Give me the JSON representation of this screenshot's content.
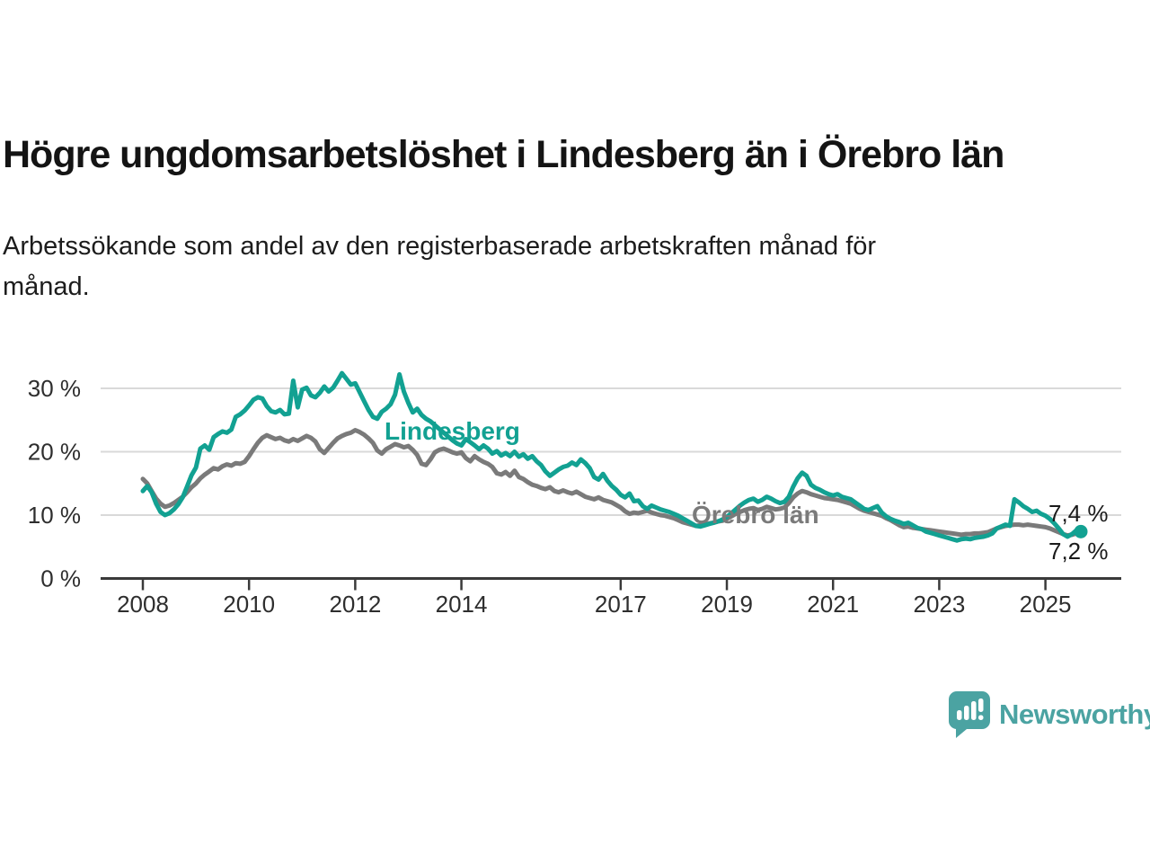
{
  "header": {
    "title": "Högre ungdomsarbetslöshet i Lindesberg än i Örebro län",
    "subtitle_lines": [
      "Arbetssökande som andel av den registerbaserade arbetskraften månad för",
      "månad."
    ]
  },
  "series_labels": {
    "lindesberg": "Lindesberg",
    "orebro": "Örebro län"
  },
  "end_labels": {
    "lindesberg": "7,4 %",
    "orebro": "7,2 %"
  },
  "footer": {
    "brand": "Newsworthy"
  },
  "colors": {
    "lindesberg": "#12a192",
    "orebro": "#7a7a7a",
    "grid": "#d9d9d9",
    "axis": "#3a3a3a",
    "axis_text": "#2e2e2e",
    "value_text": "#1a1a1a",
    "brand": "#4ba3a2"
  },
  "chart_data": {
    "type": "line",
    "x_unit": "month",
    "x_start": "2008-01",
    "x_end": "2025-09",
    "ylim": [
      0,
      36
    ],
    "grid": "horizontal-only",
    "legend_position": "inline-labels",
    "y_ticks": [
      {
        "value": 0,
        "label": "0 %"
      },
      {
        "value": 10,
        "label": "10 %"
      },
      {
        "value": 20,
        "label": "20 %"
      },
      {
        "value": 30,
        "label": "30 %"
      }
    ],
    "x_ticks": [
      {
        "year": 2008,
        "label": "2008"
      },
      {
        "year": 2010,
        "label": "2010"
      },
      {
        "year": 2012,
        "label": "2012"
      },
      {
        "year": 2014,
        "label": "2014"
      },
      {
        "year": 2017,
        "label": "2017"
      },
      {
        "year": 2019,
        "label": "2019"
      },
      {
        "year": 2021,
        "label": "2021"
      },
      {
        "year": 2023,
        "label": "2023"
      },
      {
        "year": 2025,
        "label": "2025"
      }
    ],
    "series": [
      {
        "name": "Lindesberg",
        "color": "#12a192",
        "end_value_label": "7,4 %",
        "values": [
          13.8,
          14.6,
          13.6,
          11.8,
          10.5,
          10.0,
          10.3,
          10.9,
          11.7,
          12.8,
          14.5,
          16.3,
          17.5,
          20.5,
          21.0,
          20.3,
          22.3,
          22.8,
          23.2,
          23.0,
          23.5,
          25.5,
          25.9,
          26.5,
          27.3,
          28.2,
          28.6,
          28.4,
          27.2,
          26.4,
          26.2,
          26.6,
          25.9,
          26.0,
          31.2,
          27.0,
          29.8,
          30.1,
          28.9,
          28.6,
          29.3,
          30.3,
          29.5,
          30.1,
          31.2,
          32.4,
          31.5,
          30.6,
          30.8,
          29.4,
          28.0,
          26.6,
          25.5,
          25.2,
          26.3,
          26.8,
          27.5,
          29.0,
          32.2,
          29.5,
          27.7,
          26.2,
          26.8,
          25.8,
          25.2,
          24.8,
          24.2,
          23.6,
          23.0,
          22.4,
          21.8,
          21.3,
          21.0,
          22.0,
          21.5,
          21.0,
          20.4,
          21.0,
          20.5,
          19.7,
          20.1,
          19.4,
          19.8,
          19.3,
          20.0,
          19.2,
          19.6,
          18.9,
          19.3,
          18.5,
          17.9,
          16.9,
          16.2,
          16.7,
          17.2,
          17.6,
          17.8,
          18.3,
          17.9,
          18.8,
          18.2,
          17.4,
          16.0,
          15.6,
          16.5,
          15.4,
          14.6,
          14.0,
          13.2,
          12.8,
          13.4,
          12.2,
          12.3,
          11.4,
          11.0,
          11.5,
          11.2,
          10.9,
          10.7,
          10.5,
          10.2,
          9.9,
          9.5,
          9.1,
          8.7,
          8.3,
          8.2,
          8.4,
          8.6,
          8.8,
          9.0,
          9.3,
          9.7,
          10.3,
          10.9,
          11.5,
          12.0,
          12.4,
          12.6,
          12.1,
          12.4,
          12.9,
          12.6,
          12.2,
          11.9,
          12.1,
          12.9,
          14.5,
          15.8,
          16.7,
          16.2,
          14.8,
          14.3,
          14.0,
          13.6,
          13.3,
          13.1,
          13.3,
          12.9,
          12.7,
          12.5,
          12.0,
          11.5,
          11.0,
          10.8,
          11.1,
          11.4,
          10.4,
          9.8,
          9.4,
          9.1,
          8.9,
          8.6,
          8.8,
          8.4,
          8.0,
          7.8,
          7.4,
          7.2,
          7.0,
          6.8,
          6.6,
          6.4,
          6.2,
          6.0,
          6.2,
          6.3,
          6.2,
          6.4,
          6.5,
          6.6,
          6.8,
          7.1,
          7.9,
          8.2,
          8.5,
          8.3,
          12.5,
          12.0,
          11.4,
          11.0,
          10.5,
          10.7,
          10.2,
          9.9,
          9.4,
          8.7,
          7.9,
          7.0,
          6.6,
          7.0,
          7.6,
          7.4
        ]
      },
      {
        "name": "Örebro län",
        "color": "#7a7a7a",
        "end_value_label": "7,2 %",
        "values": [
          15.7,
          15.0,
          13.8,
          12.6,
          11.8,
          11.3,
          11.5,
          11.9,
          12.4,
          12.9,
          13.6,
          14.4,
          15.0,
          15.8,
          16.4,
          16.9,
          17.4,
          17.2,
          17.7,
          18.0,
          17.8,
          18.2,
          18.1,
          18.4,
          19.3,
          20.4,
          21.4,
          22.2,
          22.6,
          22.3,
          22.0,
          22.2,
          21.8,
          21.6,
          22.0,
          21.7,
          22.1,
          22.5,
          22.2,
          21.6,
          20.4,
          19.8,
          20.6,
          21.4,
          22.1,
          22.5,
          22.8,
          23.0,
          23.4,
          23.1,
          22.7,
          22.1,
          21.4,
          20.2,
          19.7,
          20.4,
          20.8,
          21.2,
          21.0,
          20.7,
          20.9,
          20.3,
          19.5,
          18.1,
          17.9,
          18.8,
          19.9,
          20.3,
          20.5,
          20.2,
          19.9,
          19.7,
          19.9,
          19.0,
          18.5,
          19.3,
          18.8,
          18.4,
          18.1,
          17.6,
          16.6,
          16.4,
          16.8,
          16.2,
          17.0,
          16.0,
          15.7,
          15.2,
          14.8,
          14.6,
          14.3,
          14.1,
          14.4,
          13.8,
          13.6,
          13.9,
          13.6,
          13.4,
          13.7,
          13.3,
          12.9,
          12.7,
          12.5,
          12.8,
          12.4,
          12.2,
          12.0,
          11.6,
          11.2,
          10.6,
          10.2,
          10.4,
          10.3,
          10.5,
          10.7,
          10.4,
          10.2,
          10.0,
          9.9,
          9.7,
          9.5,
          9.2,
          8.9,
          8.7,
          8.5,
          8.3,
          8.4,
          8.5,
          8.7,
          8.8,
          9.0,
          9.1,
          9.4,
          9.8,
          10.2,
          10.5,
          10.8,
          11.0,
          11.1,
          10.8,
          11.0,
          11.3,
          11.1,
          10.9,
          11.0,
          11.2,
          11.9,
          12.8,
          13.4,
          13.8,
          13.6,
          13.3,
          13.1,
          12.9,
          12.7,
          12.6,
          12.5,
          12.4,
          12.2,
          12.0,
          11.8,
          11.4,
          11.0,
          10.7,
          10.5,
          10.3,
          10.1,
          9.9,
          9.5,
          9.2,
          8.8,
          8.4,
          8.1,
          8.2,
          8.0,
          7.9,
          7.8,
          7.7,
          7.6,
          7.5,
          7.4,
          7.3,
          7.2,
          7.1,
          7.0,
          6.9,
          7.0,
          7.0,
          7.1,
          7.1,
          7.2,
          7.3,
          7.6,
          7.9,
          8.1,
          8.3,
          8.4,
          8.5,
          8.5,
          8.4,
          8.5,
          8.4,
          8.3,
          8.2,
          8.1,
          7.9,
          7.6,
          7.3,
          7.0,
          6.8,
          6.9,
          7.1,
          7.2
        ]
      }
    ]
  }
}
